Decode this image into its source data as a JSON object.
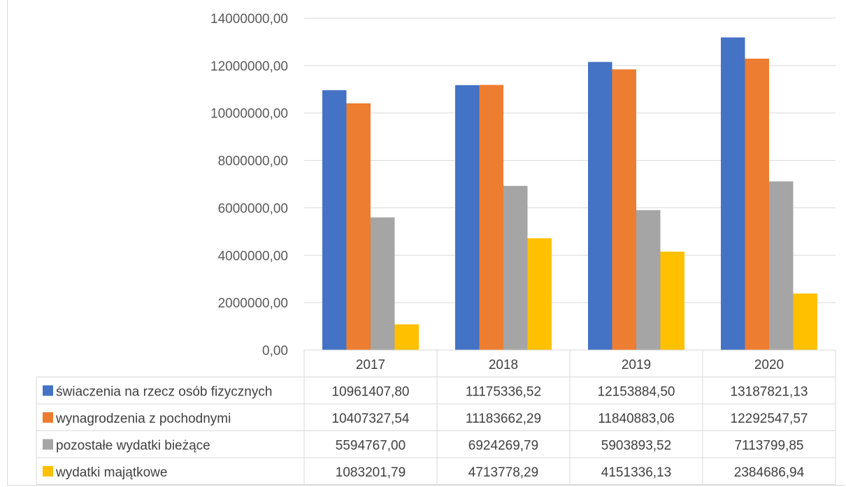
{
  "chart_data": {
    "type": "bar",
    "categories": [
      "2017",
      "2018",
      "2019",
      "2020"
    ],
    "series": [
      {
        "name": "świaczenia na rzecz osób fizycznych",
        "color": "#4472c4",
        "values": [
          10961407.8,
          11175336.52,
          12153884.5,
          13187821.13
        ],
        "display": [
          "10961407,80",
          "11175336,52",
          "12153884,50",
          "13187821,13"
        ]
      },
      {
        "name": "wynagrodzenia z pochodnymi",
        "color": "#ed7d31",
        "values": [
          10407327.54,
          11183662.29,
          11840883.06,
          12292547.57
        ],
        "display": [
          "10407327,54",
          "11183662,29",
          "11840883,06",
          "12292547,57"
        ]
      },
      {
        "name": "pozostałe wydatki bieżące",
        "color": "#a5a5a5",
        "values": [
          5594767.0,
          6924269.79,
          5903893.52,
          7113799.85
        ],
        "display": [
          "5594767,00",
          "6924269,79",
          "5903893,52",
          "7113799,85"
        ]
      },
      {
        "name": "wydatki majątkowe",
        "color": "#ffc000",
        "values": [
          1083201.79,
          4713778.29,
          4151336.13,
          2384686.94
        ],
        "display": [
          "1083201,79",
          "4713778,29",
          "4151336,13",
          "2384686,94"
        ]
      }
    ],
    "y_ticks": [
      "0,00",
      "2000000,00",
      "4000000,00",
      "6000000,00",
      "8000000,00",
      "10000000,00",
      "12000000,00",
      "14000000,00"
    ],
    "ylim": [
      0,
      14000000
    ],
    "grid": true,
    "legend": "data-table"
  }
}
